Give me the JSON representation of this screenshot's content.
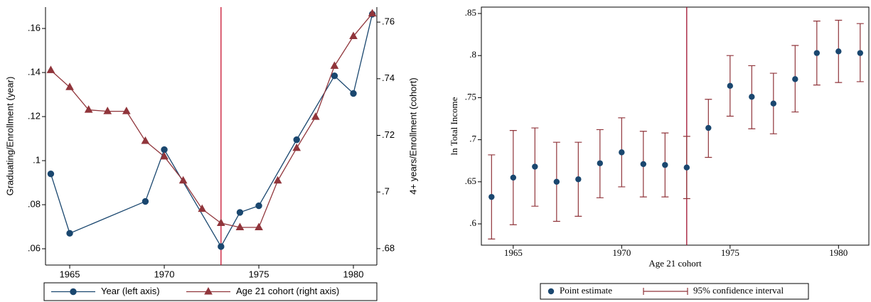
{
  "chart_data": [
    {
      "type": "line",
      "x_label": null,
      "y_label": "Graduating/Enrollment (year)",
      "y2_label": "4+ years/Enrollment (cohort)",
      "xlim": [
        1963.72,
        1981.24
      ],
      "xticks": [
        1965,
        1970,
        1975,
        1980
      ],
      "ylim": [
        0.0526,
        0.1697
      ],
      "yticks": [
        {
          "value": 0.06,
          "label": ".06"
        },
        {
          "value": 0.08,
          "label": ".08"
        },
        {
          "value": 0.1,
          "label": ".1"
        },
        {
          "value": 0.12,
          "label": ".12"
        },
        {
          "value": 0.14,
          "label": ".14"
        },
        {
          "value": 0.16,
          "label": ".16"
        }
      ],
      "y2lim": [
        0.6742,
        0.7653
      ],
      "y2ticks": [
        {
          "value": 0.68,
          "label": ".68"
        },
        {
          "value": 0.7,
          "label": ".7"
        },
        {
          "value": 0.72,
          "label": ".72"
        },
        {
          "value": 0.74,
          "label": ".74"
        },
        {
          "value": 0.76,
          "label": ".76"
        }
      ],
      "vline": 1973,
      "vline_color": "#c8102e",
      "series": [
        {
          "name": "Year (left axis)",
          "color": "#1a476f",
          "marker": "circle",
          "x": [
            1964,
            1965,
            1969,
            1970,
            1973,
            1974,
            1975,
            1977,
            1979,
            1980,
            1981
          ],
          "values": [
            0.094,
            0.067,
            0.0815,
            0.105,
            0.061,
            0.0765,
            0.0795,
            0.1095,
            0.1385,
            0.1305,
            0.1665
          ]
        },
        {
          "name": "Age 21 cohort (right axis)",
          "color": "#90353b",
          "marker": "triangle",
          "axis": "y2",
          "x": [
            1964,
            1965,
            1966,
            1967,
            1968,
            1969,
            1970,
            1971,
            1972,
            1973,
            1974,
            1975,
            1976,
            1977,
            1978,
            1979,
            1980,
            1981
          ],
          "values": [
            0.743,
            0.737,
            0.729,
            0.7285,
            0.7285,
            0.718,
            0.7125,
            0.704,
            0.694,
            0.689,
            0.6875,
            0.6875,
            0.704,
            0.7155,
            0.7265,
            0.7445,
            0.755,
            0.763
          ]
        }
      ]
    },
    {
      "type": "scatter",
      "x_label": "Age 21 cohort",
      "y_label": "ln Total Income",
      "xlim": [
        1963.53,
        1981.4
      ],
      "xticks": [
        1965,
        1970,
        1975,
        1980
      ],
      "ylim": [
        0.5747,
        0.8576
      ],
      "yticks": [
        {
          "value": 0.6,
          "label": ".6"
        },
        {
          "value": 0.65,
          "label": ".65"
        },
        {
          "value": 0.7,
          "label": ".7"
        },
        {
          "value": 0.75,
          "label": ".75"
        },
        {
          "value": 0.8,
          "label": ".8"
        },
        {
          "value": 0.85,
          "label": ".85"
        }
      ],
      "vline": 1973,
      "vline_color": "#a0102e",
      "x": [
        1964,
        1965,
        1966,
        1967,
        1968,
        1969,
        1970,
        1971,
        1972,
        1973,
        1974,
        1975,
        1976,
        1977,
        1978,
        1979,
        1980,
        1981
      ],
      "series": [
        {
          "name": "Point estimate",
          "color": "#1a476f",
          "values": [
            0.632,
            0.655,
            0.668,
            0.65,
            0.653,
            0.672,
            0.685,
            0.671,
            0.67,
            0.667,
            0.714,
            0.764,
            0.751,
            0.743,
            0.772,
            0.803,
            0.805,
            0.803
          ]
        }
      ],
      "ci": {
        "name": "95% confidence interval",
        "color": "#90353b",
        "low": [
          0.582,
          0.599,
          0.621,
          0.603,
          0.609,
          0.631,
          0.644,
          0.632,
          0.632,
          0.63,
          0.679,
          0.728,
          0.713,
          0.707,
          0.733,
          0.765,
          0.768,
          0.769
        ],
        "high": [
          0.682,
          0.711,
          0.714,
          0.697,
          0.697,
          0.712,
          0.726,
          0.71,
          0.708,
          0.704,
          0.748,
          0.8,
          0.788,
          0.779,
          0.812,
          0.841,
          0.842,
          0.838
        ]
      }
    }
  ]
}
